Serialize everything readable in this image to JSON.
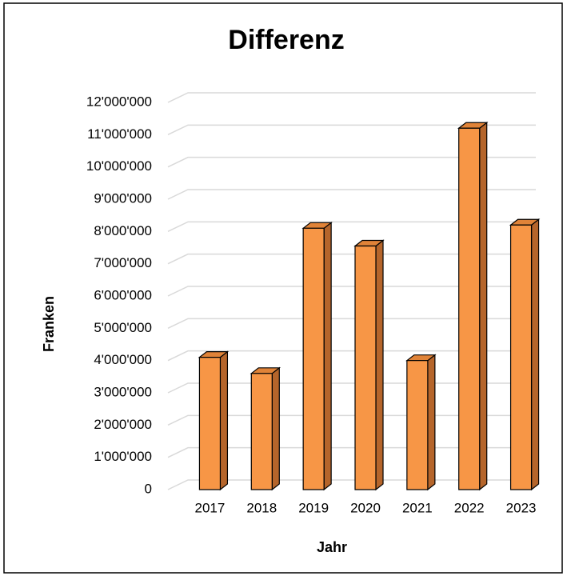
{
  "chart_data": {
    "type": "bar3d",
    "title": "Differenz",
    "x_label": "Jahr",
    "y_label": "Franken",
    "categories": [
      "2017",
      "2018",
      "2019",
      "2020",
      "2021",
      "2022",
      "2023"
    ],
    "values": [
      4100000,
      3600000,
      8100000,
      7550000,
      4000000,
      11200000,
      8200000
    ],
    "color": "#f79646",
    "ylim": [
      0,
      12000000
    ],
    "yticks": [
      0,
      {
        "value": 1000000,
        "label": "1'000'000"
      },
      {
        "value": 2000000,
        "label": "2'000'000"
      },
      {
        "value": 3000000,
        "label": "3'000'000"
      },
      {
        "value": 4000000,
        "label": "4'000'000"
      },
      {
        "value": 5000000,
        "label": "5'000'000"
      },
      {
        "value": 6000000,
        "label": "6'000'000"
      },
      {
        "value": 7000000,
        "label": "7'000'000"
      },
      {
        "value": 8000000,
        "label": "8'000'000"
      },
      {
        "value": 9000000,
        "label": "9'000'000"
      },
      {
        "value": 10000000,
        "label": "10'000'000"
      },
      {
        "value": 11000000,
        "label": "11'000'000"
      },
      {
        "value": 12000000,
        "label": "12'000'000"
      }
    ],
    "grid": true
  }
}
